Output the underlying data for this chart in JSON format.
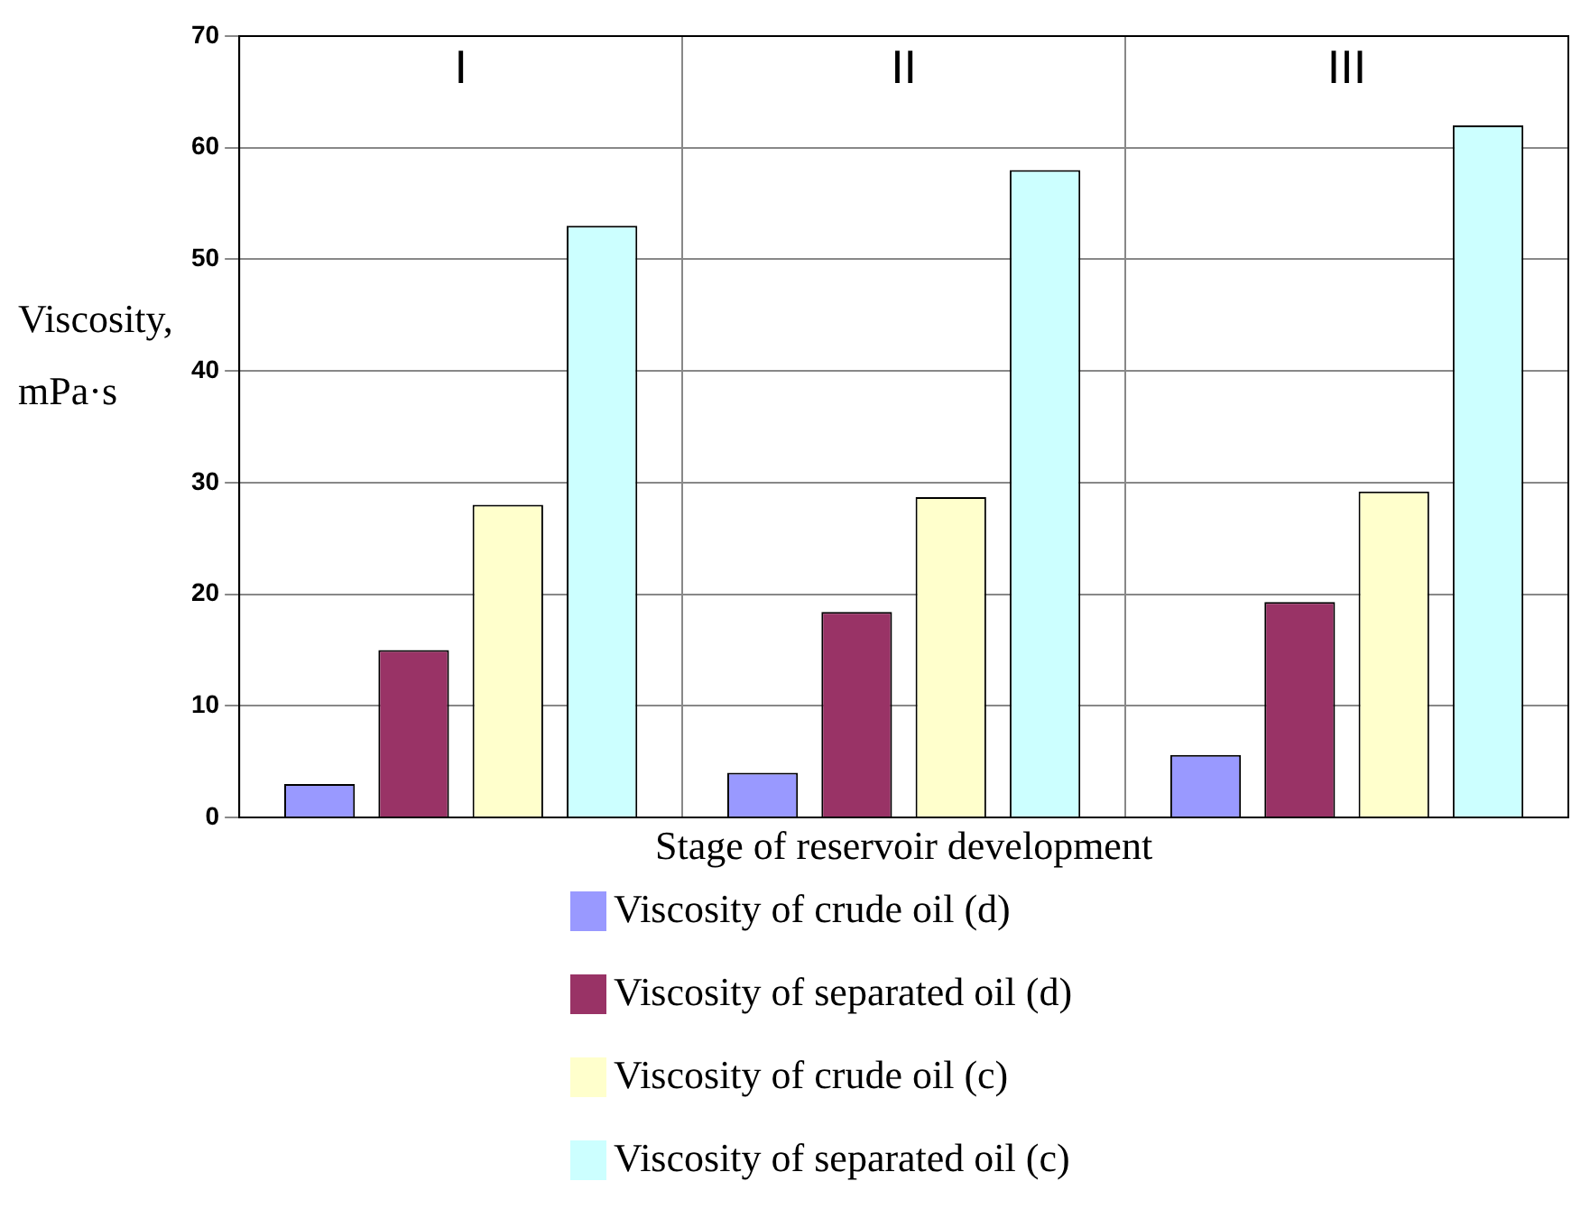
{
  "chart_data": {
    "type": "bar",
    "xlabel": "Stage of reservoir development",
    "ylabel": "Viscosity, mPa·s",
    "categories": [
      "I",
      "II",
      "III"
    ],
    "series": [
      {
        "name": "Viscosity of crude oil (d)",
        "color": "#9999ff",
        "values": [
          3,
          4,
          5.6
        ]
      },
      {
        "name": "Viscosity of separated oil (d)",
        "color": "#993366",
        "values": [
          15,
          18.4,
          19.3
        ]
      },
      {
        "name": "Viscosity of crude oil (c)",
        "color": "#ffffcc",
        "values": [
          28,
          28.7,
          29.2
        ]
      },
      {
        "name": "Viscosity of separated oil (c)",
        "color": "#ccffff",
        "values": [
          53,
          58,
          62
        ]
      }
    ],
    "ylim": [
      0,
      70
    ],
    "yticks": [
      0,
      10,
      20,
      30,
      40,
      50,
      60,
      70
    ],
    "grid": true,
    "legend": "bottom"
  }
}
